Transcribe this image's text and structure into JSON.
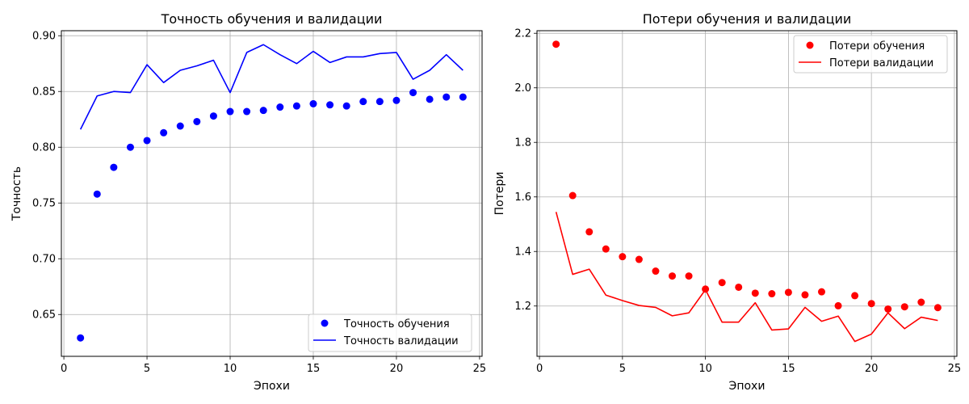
{
  "chart_data": [
    {
      "type": "line",
      "title": "Точность обучения и валидации",
      "xlabel": "Эпохи",
      "ylabel": "Точность",
      "xlim": [
        -0.15,
        25.15
      ],
      "ylim": [
        0.6125,
        0.9045
      ],
      "xticks": [
        0,
        5,
        10,
        15,
        20,
        25
      ],
      "yticks": [
        0.65,
        0.7,
        0.75,
        0.8,
        0.85,
        0.9
      ],
      "ytick_decimals": 2,
      "grid": true,
      "legend_position": "bottom-right",
      "x": [
        1,
        2,
        3,
        4,
        5,
        6,
        7,
        8,
        9,
        10,
        11,
        12,
        13,
        14,
        15,
        16,
        17,
        18,
        19,
        20,
        21,
        22,
        23,
        24
      ],
      "series": [
        {
          "name": "Точность обучения",
          "style": "markers",
          "color": "#0000ff",
          "values": [
            0.629,
            0.758,
            0.782,
            0.8,
            0.806,
            0.813,
            0.819,
            0.823,
            0.828,
            0.832,
            0.832,
            0.833,
            0.836,
            0.837,
            0.839,
            0.838,
            0.837,
            0.841,
            0.841,
            0.842,
            0.849,
            0.843,
            0.845,
            0.845
          ]
        },
        {
          "name": "Точность валидации",
          "style": "line",
          "color": "#0000ff",
          "values": [
            0.816,
            0.846,
            0.85,
            0.849,
            0.874,
            0.858,
            0.869,
            0.873,
            0.878,
            0.849,
            0.885,
            0.892,
            0.883,
            0.875,
            0.886,
            0.876,
            0.881,
            0.881,
            0.884,
            0.885,
            0.861,
            0.869,
            0.883,
            0.869
          ]
        }
      ]
    },
    {
      "type": "line",
      "title": "Потери обучения и валидации",
      "xlabel": "Эпохи",
      "ylabel": "Потери",
      "xlim": [
        -0.15,
        25.15
      ],
      "ylim": [
        1.0155,
        2.2095
      ],
      "xticks": [
        0,
        5,
        10,
        15,
        20,
        25
      ],
      "yticks": [
        1.2,
        1.4,
        1.6,
        1.8,
        2.0,
        2.2
      ],
      "ytick_decimals": 1,
      "grid": true,
      "legend_position": "top-right",
      "x": [
        1,
        2,
        3,
        4,
        5,
        6,
        7,
        8,
        9,
        10,
        11,
        12,
        13,
        14,
        15,
        16,
        17,
        18,
        19,
        20,
        21,
        22,
        23,
        24
      ],
      "series": [
        {
          "name": "Потери обучения",
          "style": "markers",
          "color": "#ff0000",
          "values": [
            2.16,
            1.605,
            1.472,
            1.409,
            1.381,
            1.371,
            1.328,
            1.31,
            1.31,
            1.262,
            1.286,
            1.269,
            1.247,
            1.245,
            1.25,
            1.241,
            1.252,
            1.201,
            1.238,
            1.209,
            1.189,
            1.197,
            1.214,
            1.194
          ]
        },
        {
          "name": "Потери валидации",
          "style": "line",
          "color": "#ff0000",
          "values": [
            1.545,
            1.316,
            1.335,
            1.24,
            1.22,
            1.202,
            1.195,
            1.164,
            1.175,
            1.26,
            1.141,
            1.141,
            1.212,
            1.112,
            1.116,
            1.195,
            1.144,
            1.163,
            1.07,
            1.097,
            1.175,
            1.117,
            1.159,
            1.147
          ]
        }
      ]
    }
  ]
}
